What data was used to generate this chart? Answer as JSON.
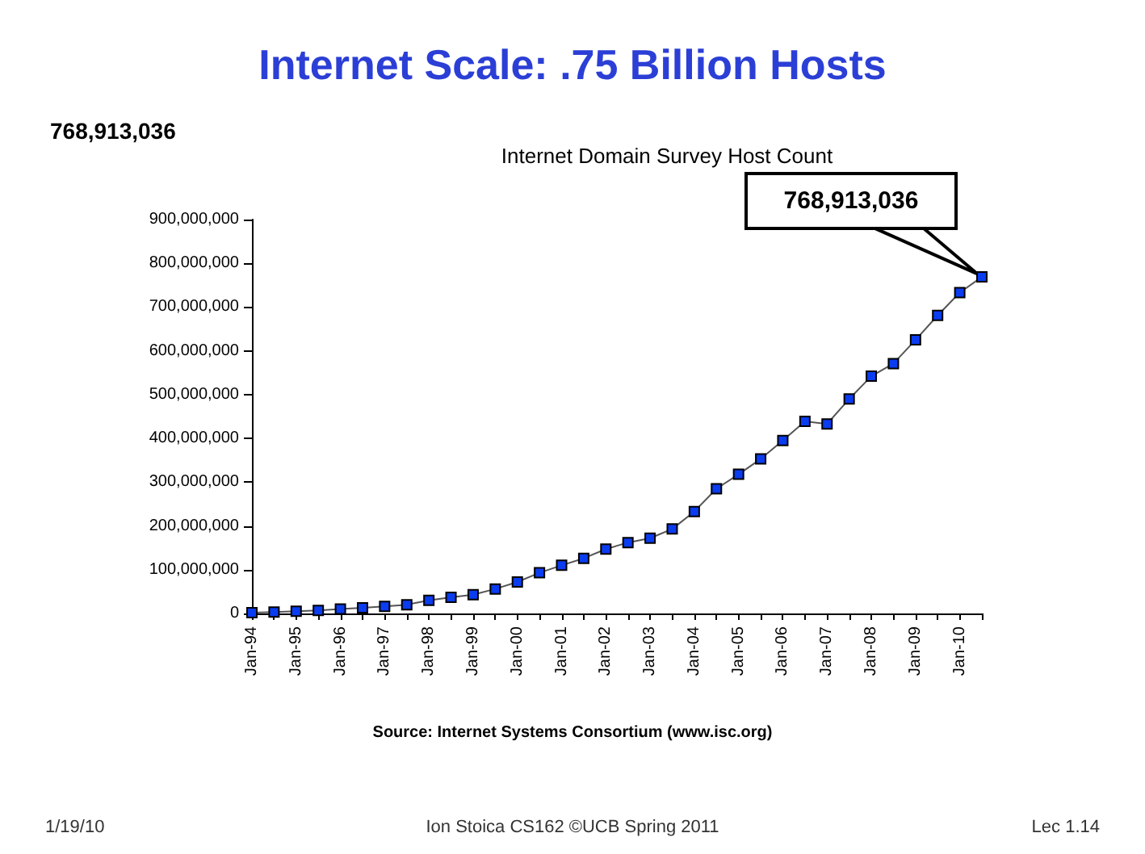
{
  "chart_data": {
    "type": "line",
    "title": "Internet Scale: .75 Billion Hosts",
    "subtitle": "Internet Domain Survey Host Count",
    "categories": [
      "Jan-94",
      null,
      "Jan-95",
      null,
      "Jan-96",
      null,
      "Jan-97",
      null,
      "Jan-98",
      null,
      "Jan-99",
      null,
      "Jan-00",
      null,
      "Jan-01",
      null,
      "Jan-02",
      null,
      "Jan-03",
      null,
      "Jan-04",
      null,
      "Jan-05",
      null,
      "Jan-06",
      null,
      "Jan-07",
      null,
      "Jan-08",
      null,
      "Jan-09",
      null,
      "Jan-10",
      null
    ],
    "series": [
      {
        "color": "#0a3cf0",
        "values": [
          2000000,
          3000000,
          5000000,
          7000000,
          10000000,
          13000000,
          16000000,
          20000000,
          30000000,
          37000000,
          43000000,
          56000000,
          72000000,
          93000000,
          110000000,
          126000000,
          147000000,
          162000000,
          172000000,
          193000000,
          233000000,
          285000000,
          318000000,
          353000000,
          395000000,
          439000000,
          433000000,
          490000000,
          542000000,
          571000000,
          625000000,
          681000000,
          733000000,
          768913036
        ]
      }
    ],
    "ylim": [
      0,
      900000000
    ],
    "yticks": [
      0,
      {
        "value": 100000000,
        "label": "100,000,000"
      },
      {
        "value": 200000000,
        "label": "200,000,000"
      },
      {
        "value": 300000000,
        "label": "300,000,000"
      },
      {
        "value": 400000000,
        "label": "400,000,000"
      },
      {
        "value": 500000000,
        "label": "500,000,000"
      },
      {
        "value": 600000000,
        "label": "600,000,000"
      },
      {
        "value": 700000000,
        "label": "700,000,000"
      },
      {
        "value": 800000000,
        "label": "800,000,000"
      },
      {
        "value": 900000000,
        "label": "900,000,000"
      }
    ],
    "grid": false,
    "marker": "square",
    "line_style": "solid",
    "annotations": [
      "768,913,036",
      "768,913,036",
      "Source: Internet Systems Consortium (www.isc.org)",
      "1/19/10",
      "Ion Stoica CS162 ©UCB Spring 2011",
      "Lec 1.14"
    ]
  }
}
